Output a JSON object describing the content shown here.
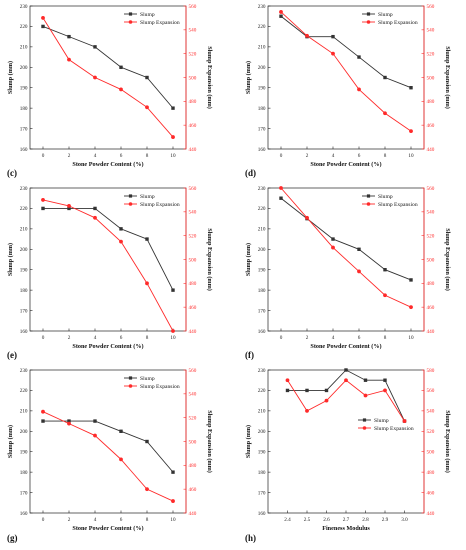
{
  "figure": {
    "colors": {
      "slump": "#333333",
      "expansion": "#ff2a2a",
      "axis": "#222222"
    }
  },
  "chart_data": [
    {
      "panel_label": "(c)",
      "type": "line",
      "x": [
        0,
        2,
        4,
        6,
        8,
        10
      ],
      "xticks": [
        "0",
        "2",
        "4",
        "6",
        "8",
        "10"
      ],
      "xlim": [
        -1,
        11
      ],
      "xlabel": "Stone Powder Content (%)",
      "ylabel": "Slump (mm)",
      "y2label": "Slump Expansion (mm)",
      "ylim": [
        160,
        230
      ],
      "yticks": [
        160,
        170,
        180,
        190,
        200,
        210,
        220,
        230
      ],
      "y2lim": [
        440,
        560
      ],
      "y2ticks": [
        440,
        460,
        480,
        500,
        520,
        540,
        560
      ],
      "legend_position": "top-right",
      "series": [
        {
          "name": "Slump",
          "axis": "left",
          "marker": "square",
          "values": [
            220,
            215,
            210,
            200,
            195,
            180
          ]
        },
        {
          "name": "Slump Expansion",
          "axis": "right",
          "marker": "circle",
          "values": [
            550,
            515,
            500,
            490,
            475,
            450
          ]
        }
      ]
    },
    {
      "panel_label": "(d)",
      "type": "line",
      "x": [
        0,
        2,
        4,
        6,
        8,
        10
      ],
      "xticks": [
        "0",
        "2",
        "4",
        "6",
        "8",
        "10"
      ],
      "xlim": [
        -1,
        11
      ],
      "xlabel": "Stone Powder Content (%)",
      "ylabel": "Slump (mm)",
      "y2label": "Slump Expansion (mm)",
      "ylim": [
        160,
        230
      ],
      "yticks": [
        160,
        170,
        180,
        190,
        200,
        210,
        220,
        230
      ],
      "y2lim": [
        440,
        560
      ],
      "y2ticks": [
        440,
        460,
        480,
        500,
        520,
        540,
        560
      ],
      "legend_position": "top-right",
      "series": [
        {
          "name": "Slump",
          "axis": "left",
          "marker": "square",
          "values": [
            225,
            215,
            215,
            205,
            195,
            190
          ]
        },
        {
          "name": "Slump Expansion",
          "axis": "right",
          "marker": "circle",
          "values": [
            555,
            535,
            520,
            490,
            470,
            455
          ]
        }
      ]
    },
    {
      "panel_label": "(e)",
      "type": "line",
      "x": [
        0,
        2,
        4,
        6,
        8,
        10
      ],
      "xticks": [
        "0",
        "2",
        "4",
        "6",
        "8",
        "10"
      ],
      "xlim": [
        -1,
        11
      ],
      "xlabel": "Stone Powder Content (%)",
      "ylabel": "Slump (mm)",
      "y2label": "Slump Expansion (mm)",
      "ylim": [
        160,
        230
      ],
      "yticks": [
        160,
        170,
        180,
        190,
        200,
        210,
        220,
        230
      ],
      "y2lim": [
        440,
        560
      ],
      "y2ticks": [
        440,
        460,
        480,
        500,
        520,
        540,
        560
      ],
      "legend_position": "top-right",
      "series": [
        {
          "name": "Slump",
          "axis": "left",
          "marker": "square",
          "values": [
            220,
            220,
            220,
            210,
            205,
            180
          ]
        },
        {
          "name": "Slump Expansion",
          "axis": "right",
          "marker": "circle",
          "values": [
            550,
            545,
            535,
            515,
            480,
            440
          ]
        }
      ]
    },
    {
      "panel_label": "(f)",
      "type": "line",
      "x": [
        0,
        2,
        4,
        6,
        8,
        10
      ],
      "xticks": [
        "0",
        "2",
        "4",
        "6",
        "8",
        "10"
      ],
      "xlim": [
        -1,
        11
      ],
      "xlabel": "Stone Powder Content (%)",
      "ylabel": "Slump (mm)",
      "y2label": "Slump Expansion (mm)",
      "ylim": [
        160,
        230
      ],
      "yticks": [
        160,
        170,
        180,
        190,
        200,
        210,
        220,
        230
      ],
      "y2lim": [
        440,
        560
      ],
      "y2ticks": [
        440,
        460,
        480,
        500,
        520,
        540,
        560
      ],
      "legend_position": "top-right",
      "series": [
        {
          "name": "Slump",
          "axis": "left",
          "marker": "square",
          "values": [
            225,
            215,
            205,
            200,
            190,
            185
          ]
        },
        {
          "name": "Slump Expansion",
          "axis": "right",
          "marker": "circle",
          "values": [
            560,
            535,
            510,
            490,
            470,
            460
          ]
        }
      ]
    },
    {
      "panel_label": "(g)",
      "type": "line",
      "x": [
        0,
        2,
        4,
        6,
        8,
        10
      ],
      "xticks": [
        "0",
        "2",
        "4",
        "6",
        "8",
        "10"
      ],
      "xlim": [
        -1,
        11
      ],
      "xlabel": "Stone Powder Content (%)",
      "ylabel": "Slump (mm)",
      "y2label": "Slump Expansion (mm)",
      "ylim": [
        160,
        230
      ],
      "yticks": [
        160,
        170,
        180,
        190,
        200,
        210,
        220,
        230
      ],
      "y2lim": [
        440,
        560
      ],
      "y2ticks": [
        440,
        460,
        480,
        500,
        520,
        540,
        560
      ],
      "legend_position": "top-right",
      "series": [
        {
          "name": "Slump",
          "axis": "left",
          "marker": "square",
          "values": [
            205,
            205,
            205,
            200,
            195,
            180
          ]
        },
        {
          "name": "Slump Expansion",
          "axis": "right",
          "marker": "circle",
          "values": [
            525,
            515,
            505,
            485,
            460,
            450
          ]
        }
      ]
    },
    {
      "panel_label": "(h)",
      "type": "line",
      "x": [
        2.4,
        2.5,
        2.6,
        2.7,
        2.8,
        2.9,
        3.0
      ],
      "xticks": [
        "2.4",
        "2.5",
        "2.6",
        "2.7",
        "2.8",
        "2.9",
        "3.0"
      ],
      "xlim": [
        2.3,
        3.1
      ],
      "xlabel": "Fineness Modulus",
      "ylabel": "Slump (mm)",
      "y2label": "Slump Expansion (mm)",
      "ylim": [
        160,
        230
      ],
      "yticks": [
        160,
        170,
        180,
        190,
        200,
        210,
        220,
        230
      ],
      "y2lim": [
        440,
        580
      ],
      "y2ticks": [
        440,
        460,
        480,
        500,
        520,
        540,
        560,
        580
      ],
      "legend_position": "center-right",
      "series": [
        {
          "name": "Slump",
          "axis": "left",
          "marker": "square",
          "values": [
            220,
            220,
            220,
            230,
            225,
            225,
            205
          ]
        },
        {
          "name": "Slump Expansion",
          "axis": "right",
          "marker": "circle",
          "values": [
            570,
            540,
            550,
            570,
            555,
            560,
            530
          ]
        }
      ]
    }
  ]
}
